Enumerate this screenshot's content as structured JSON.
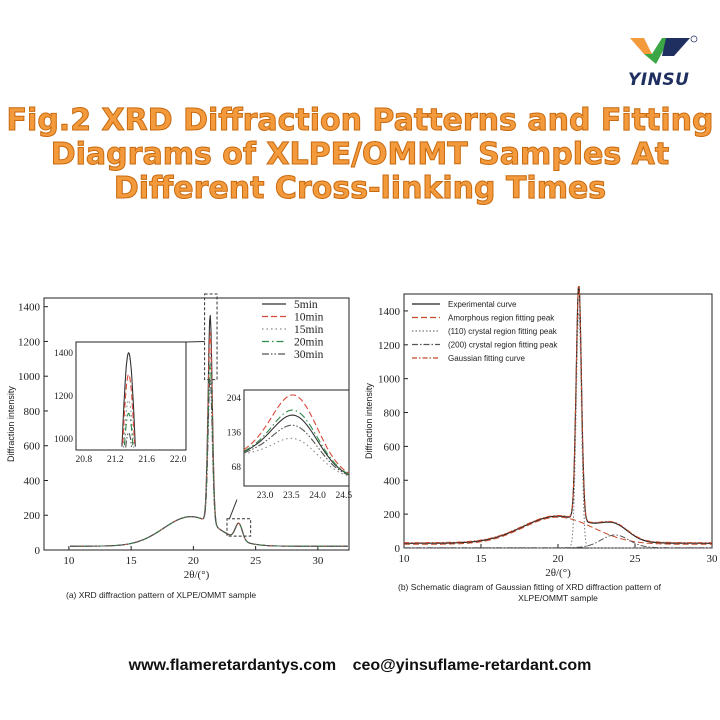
{
  "brand": {
    "name": "YINSU",
    "registered": "®",
    "colors": {
      "orange": "#f39a3c",
      "green": "#3aa646",
      "navy": "#1f2f5f"
    }
  },
  "title": {
    "line1": "Fig.2 XRD Diffraction Patterns and Fitting",
    "line2": "Diagrams of XLPE/OMMT Samples At",
    "line3": "Different Cross-linking Times"
  },
  "footer": {
    "website": "www.flameretardantys.com",
    "email": "ceo@yinsuflame-retardant.com"
  },
  "chart_data": [
    {
      "type": "line",
      "caption": "(a) XRD diffraction pattern of XLPE/OMMT sample",
      "xlabel": "2θ/(°)",
      "ylabel": "Diffraction intensity",
      "xlim": [
        8,
        32.5
      ],
      "ylim": [
        0,
        1450
      ],
      "xticks": [
        10,
        15,
        20,
        25,
        30
      ],
      "yticks": [
        0,
        200,
        400,
        600,
        800,
        1000,
        1200,
        1400
      ],
      "series": [
        {
          "name": "5min",
          "color": "#333333",
          "dash": "",
          "peak": 1400
        },
        {
          "name": "10min",
          "color": "#d84a3a",
          "dash": "6 3",
          "peak": 1300
        },
        {
          "name": "15min",
          "color": "#8a8a8a",
          "dash": "1.5 3",
          "peak": 1180
        },
        {
          "name": "20min",
          "color": "#2f8a4a",
          "dash": "7 3 1.5 3",
          "peak": 1120
        },
        {
          "name": "30min",
          "color": "#555555",
          "dash": "7 2 1.5 2 1.5 2",
          "peak": 1030
        }
      ],
      "insets": [
        {
          "xlim": [
            20.7,
            22.1
          ],
          "ylim": [
            950,
            1450
          ],
          "xticks": [
            "20.8",
            "21.2",
            "21.6",
            "22.0"
          ],
          "yticks": [
            "1000",
            "1200",
            "1400"
          ]
        },
        {
          "xlim": [
            22.6,
            24.6
          ],
          "ylim": [
            30,
            220
          ],
          "xticks": [
            "23.0",
            "23.5",
            "24.0",
            "24.5"
          ],
          "yticks": [
            "68",
            "136",
            "204"
          ]
        }
      ]
    },
    {
      "type": "line",
      "caption_line1": "(b) Schematic diagram of Gaussian fitting of XRD diffraction pattern of",
      "caption_line2": "XLPE/OMMT sample",
      "xlabel": "2θ/(°)",
      "ylabel": "Diffraction intensity",
      "xlim": [
        10,
        30
      ],
      "ylim": [
        0,
        1500
      ],
      "xticks": [
        10,
        15,
        20,
        25,
        30
      ],
      "yticks": [
        0,
        200,
        400,
        600,
        800,
        1000,
        1200,
        1400
      ],
      "series": [
        {
          "name": "Experimental curve",
          "color": "#222222",
          "dash": ""
        },
        {
          "name": "Amorphous region fitting peak",
          "color": "#c44a2a",
          "dash": "6 3"
        },
        {
          "name": "(110) crystal region fitting peak",
          "color": "#777777",
          "dash": "1.5 2"
        },
        {
          "name": "(200) crystal region fitting peak",
          "color": "#555555",
          "dash": "6 2 1.5 2"
        },
        {
          "name": "Gaussian fitting curve",
          "color": "#c44a2a",
          "dash": "5 2 1.5 2"
        }
      ]
    }
  ]
}
